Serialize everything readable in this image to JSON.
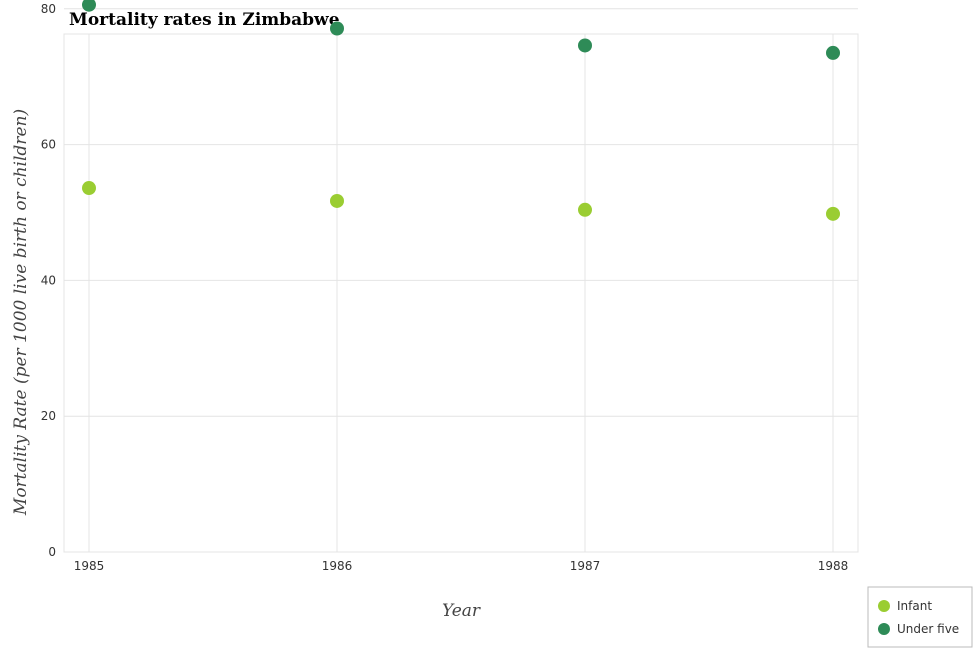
{
  "chart_data": {
    "type": "scatter",
    "title": "Mortality rates in Zimbabwe",
    "xlabel": "Year",
    "ylabel": "Mortality Rate (per 1000 live birth or children)",
    "x": [
      "1985",
      "1986",
      "1987",
      "1988"
    ],
    "y_ticks": [
      "0",
      "20",
      "40",
      "60",
      "80"
    ],
    "ylim": [
      0,
      83
    ],
    "grid": true,
    "legend_position": "bottom-right",
    "series": [
      {
        "name": "Infant",
        "color": "#9acd32",
        "values": [
          53.6,
          51.7,
          50.4,
          49.8
        ]
      },
      {
        "name": "Under five",
        "color": "#2e8b57",
        "values": [
          80.6,
          77.1,
          74.6,
          73.5
        ]
      }
    ]
  }
}
